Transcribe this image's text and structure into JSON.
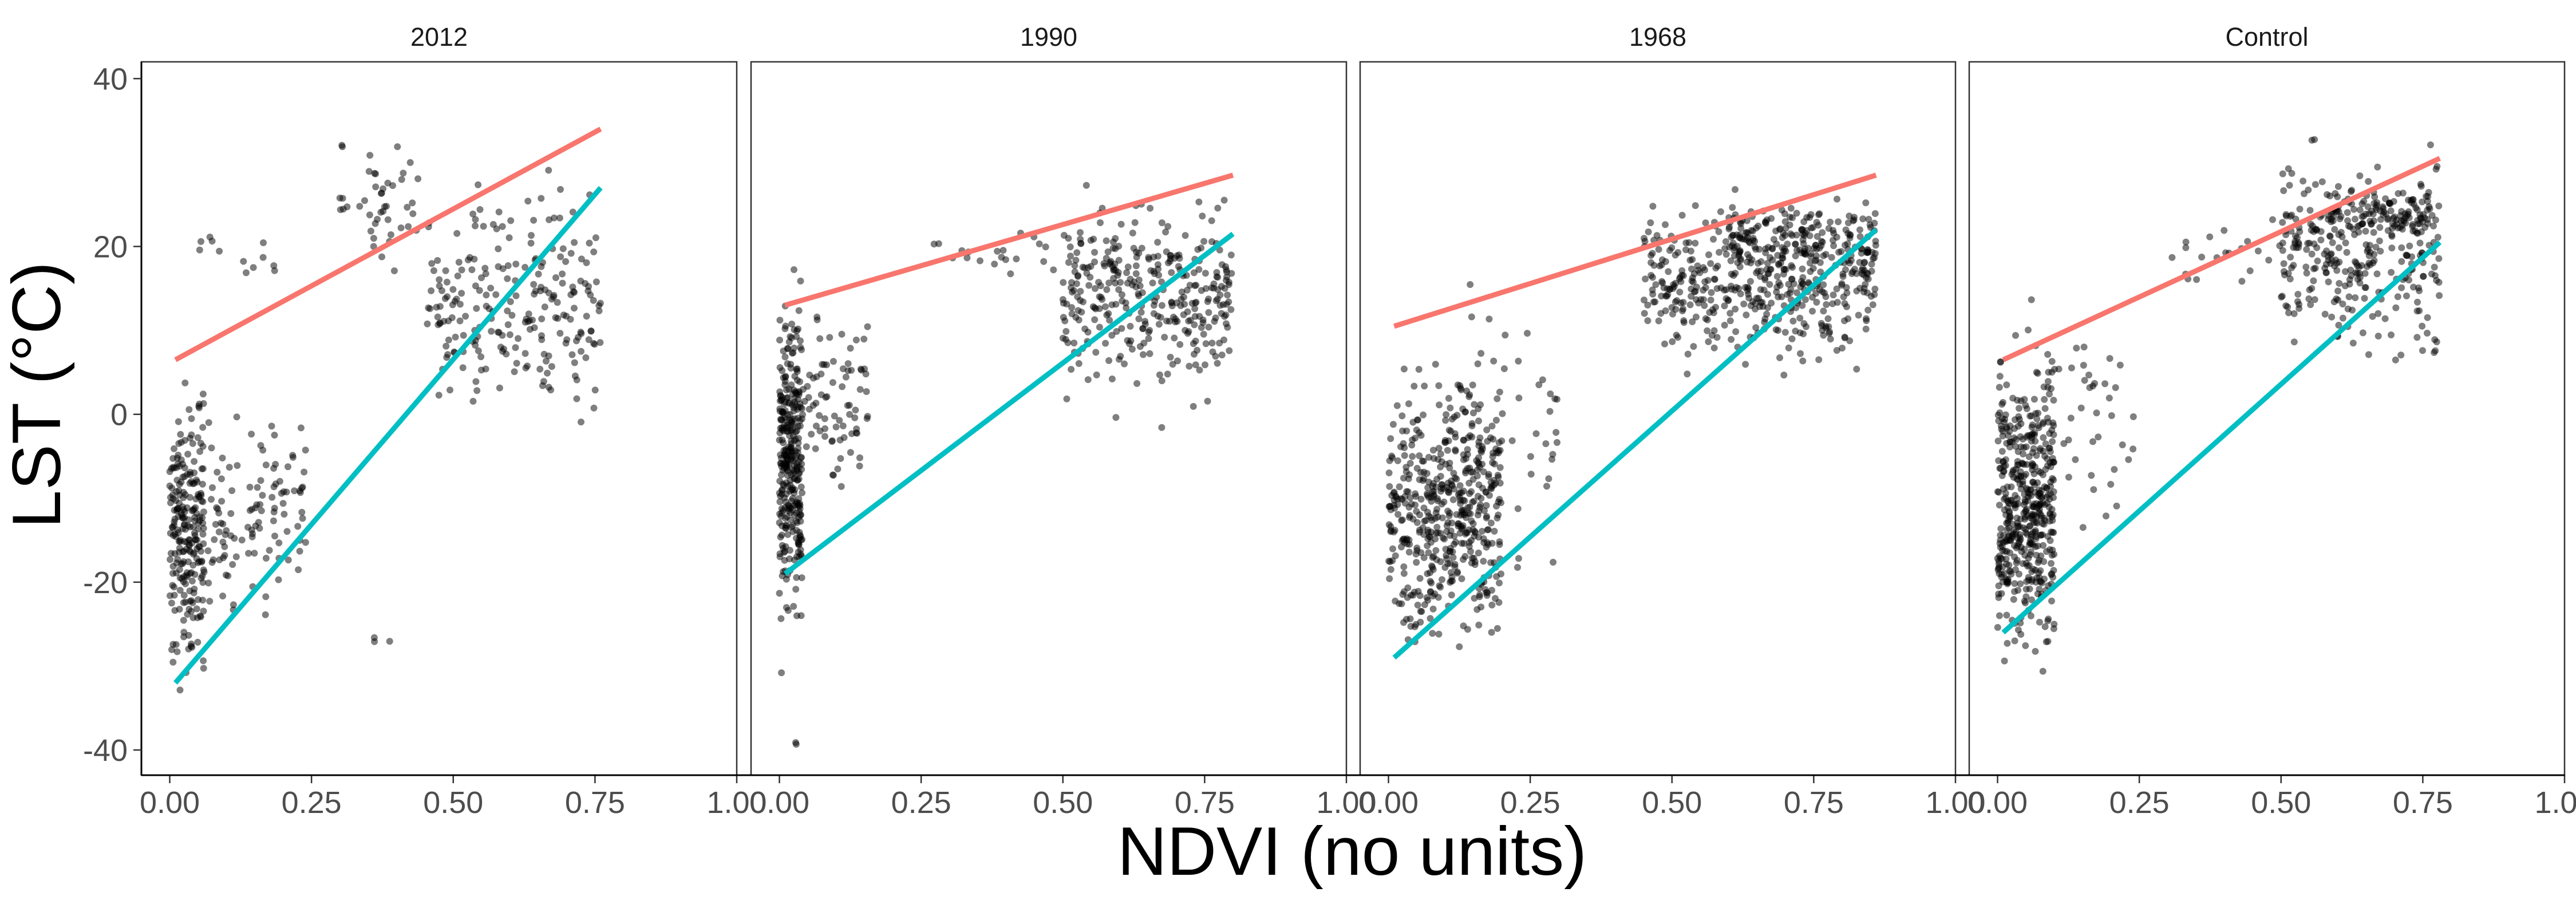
{
  "chart_data": {
    "type": "scatter",
    "title": "",
    "xlabel": "NDVI (no units)",
    "ylabel": "LST (°C)",
    "xlim": [
      -0.05,
      1.0
    ],
    "ylim": [
      -43,
      42
    ],
    "x_ticks": [
      "0.00",
      "0.25",
      "0.50",
      "0.75",
      "1.00"
    ],
    "y_ticks": [
      "-40",
      "-20",
      "0",
      "20",
      "40"
    ],
    "grid": false,
    "legend": "none",
    "colors": {
      "points": "#000000",
      "line_upper": "#F8766D",
      "line_lower": "#00BFC4",
      "axis": "#333333"
    },
    "panels": [
      {
        "label": "2012",
        "lines": [
          {
            "color": "#F8766D",
            "x": [
              0.01,
              0.76
            ],
            "y": [
              6.5,
              34
            ]
          },
          {
            "color": "#00BFC4",
            "x": [
              0.01,
              0.76
            ],
            "y": [
              -32,
              27
            ]
          }
        ],
        "clusters": [
          {
            "x": [
              0.0,
              0.06
            ],
            "y": [
              -40,
              12
            ],
            "n": 230
          },
          {
            "x": [
              0.05,
              0.24
            ],
            "y": [
              -31,
              6
            ],
            "n": 120
          },
          {
            "x": [
              0.02,
              0.2
            ],
            "y": [
              14,
              24
            ],
            "n": 12
          },
          {
            "x": [
              0.3,
              0.45
            ],
            "y": [
              14,
              38
            ],
            "n": 45
          },
          {
            "x": [
              0.45,
              0.76
            ],
            "y": [
              -8,
              36
            ],
            "n": 230
          },
          {
            "x": [
              0.3,
              0.4
            ],
            "y": [
              -28,
              -25
            ],
            "n": 3
          }
        ]
      },
      {
        "label": "1990",
        "lines": [
          {
            "color": "#F8766D",
            "x": [
              0.01,
              0.8
            ],
            "y": [
              13,
              28.5
            ]
          },
          {
            "color": "#00BFC4",
            "x": [
              0.01,
              0.8
            ],
            "y": [
              -19,
              21.5
            ]
          }
        ],
        "clusters": [
          {
            "x": [
              0.0,
              0.04
            ],
            "y": [
              -33,
              22
            ],
            "n": 320
          },
          {
            "x": [
              0.03,
              0.16
            ],
            "y": [
              -16,
              18
            ],
            "n": 80
          },
          {
            "x": [
              0.25,
              0.5
            ],
            "y": [
              14,
              25
            ],
            "n": 20
          },
          {
            "x": [
              0.5,
              0.8
            ],
            "y": [
              -3,
              31
            ],
            "n": 340
          },
          {
            "x": [
              0.02,
              0.03
            ],
            "y": [
              -40,
              -38
            ],
            "n": 2
          }
        ]
      },
      {
        "label": "1968",
        "lines": [
          {
            "color": "#F8766D",
            "x": [
              0.01,
              0.86
            ],
            "y": [
              10.5,
              28.5
            ]
          },
          {
            "color": "#00BFC4",
            "x": [
              0.01,
              0.86
            ],
            "y": [
              -29,
              22
            ]
          }
        ],
        "clusters": [
          {
            "x": [
              0.0,
              0.2
            ],
            "y": [
              -35,
              10
            ],
            "n": 480
          },
          {
            "x": [
              0.1,
              0.3
            ],
            "y": [
              -25,
              20
            ],
            "n": 70
          },
          {
            "x": [
              0.45,
              0.86
            ],
            "y": [
              2,
              29
            ],
            "n": 420
          },
          {
            "x": [
              0.6,
              0.86
            ],
            "y": [
              13,
              28
            ],
            "n": 160
          }
        ]
      },
      {
        "label": "Control",
        "lines": [
          {
            "color": "#F8766D",
            "x": [
              0.01,
              0.78
            ],
            "y": [
              6.5,
              30.5
            ]
          },
          {
            "color": "#00BFC4",
            "x": [
              0.01,
              0.78
            ],
            "y": [
              -26,
              20.5
            ]
          }
        ],
        "clusters": [
          {
            "x": [
              0.0,
              0.1
            ],
            "y": [
              -36,
              16
            ],
            "n": 480
          },
          {
            "x": [
              0.08,
              0.24
            ],
            "y": [
              -22,
              24
            ],
            "n": 40
          },
          {
            "x": [
              0.3,
              0.5
            ],
            "y": [
              12,
              26
            ],
            "n": 20
          },
          {
            "x": [
              0.5,
              0.78
            ],
            "y": [
              2,
              36
            ],
            "n": 300
          },
          {
            "x": [
              0.58,
              0.76
            ],
            "y": [
              20,
              28
            ],
            "n": 90
          }
        ]
      }
    ]
  }
}
